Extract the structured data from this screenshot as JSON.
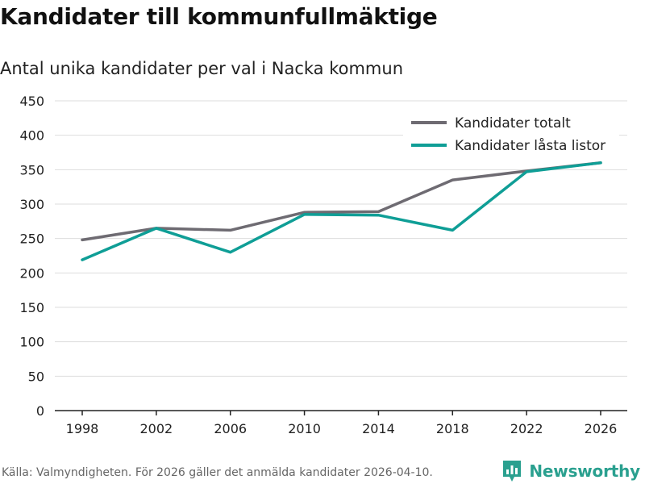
{
  "title": "Kandidater till kommunfullmäktige",
  "subtitle": "Antal unika kandidater per val i Nacka kommun",
  "footer": "Källa: Valmyndigheten. För 2026 gäller det anmälda kandidater 2026-04-10.",
  "brand": {
    "name": "Newsworthy",
    "icon": "newsworthy-logo-icon",
    "color": "#2aa08f"
  },
  "chart_data": {
    "type": "line",
    "title": "Kandidater till kommunfullmäktige",
    "subtitle": "Antal unika kandidater per val i Nacka kommun",
    "xlabel": "",
    "ylabel": "",
    "x": [
      "1998",
      "2002",
      "2006",
      "2010",
      "2014",
      "2018",
      "2022",
      "2026"
    ],
    "ylim": [
      0,
      450
    ],
    "yticks": [
      0,
      50,
      100,
      150,
      200,
      250,
      300,
      350,
      400,
      450
    ],
    "grid": true,
    "legend_position": "top-right",
    "series": [
      {
        "name": "Kandidater totalt",
        "color": "#6e6b72",
        "values": [
          248,
          265,
          262,
          288,
          289,
          335,
          348,
          360
        ]
      },
      {
        "name": "Kandidater låsta listor",
        "color": "#0f9e96",
        "values": [
          219,
          265,
          230,
          285,
          284,
          262,
          347,
          360
        ]
      }
    ]
  }
}
